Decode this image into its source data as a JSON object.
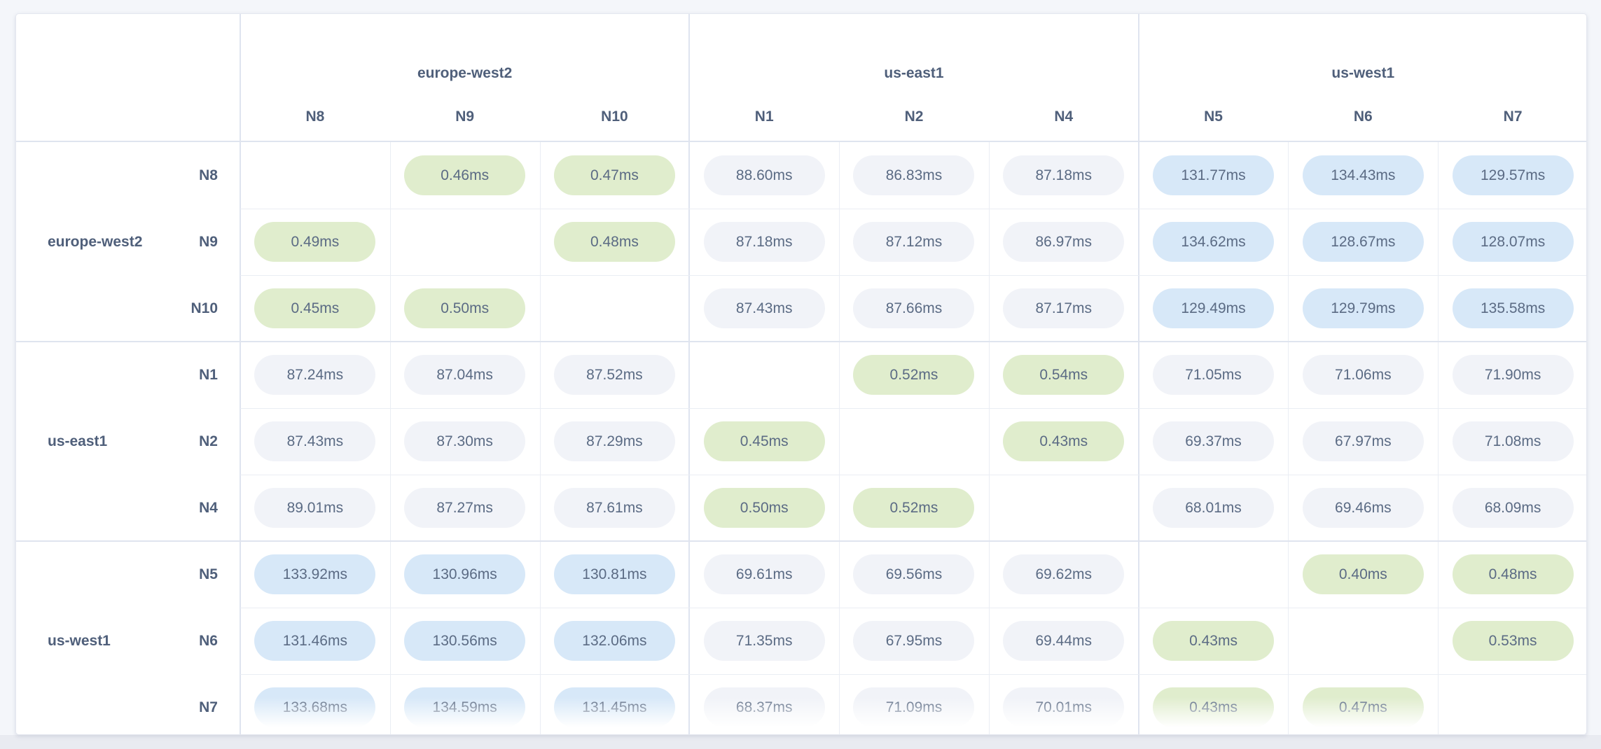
{
  "page": {
    "background_color": "#f4f6fa",
    "footer_band_color": "#e9ebf1",
    "card_background_color": "#ffffff"
  },
  "latency_matrix": {
    "unit_suffix": "ms",
    "column_groups": [
      {
        "region": "europe-west2",
        "nodes": [
          "N8",
          "N9",
          "N10"
        ]
      },
      {
        "region": "us-east1",
        "nodes": [
          "N1",
          "N2",
          "N4"
        ]
      },
      {
        "region": "us-west1",
        "nodes": [
          "N5",
          "N6",
          "N7"
        ]
      }
    ],
    "row_groups": [
      {
        "region": "europe-west2",
        "rows": [
          {
            "node": "N8",
            "values": [
              null,
              "0.46ms",
              "0.47ms",
              "88.60ms",
              "86.83ms",
              "87.18ms",
              "131.77ms",
              "134.43ms",
              "129.57ms"
            ]
          },
          {
            "node": "N9",
            "values": [
              "0.49ms",
              null,
              "0.48ms",
              "87.18ms",
              "87.12ms",
              "86.97ms",
              "134.62ms",
              "128.67ms",
              "128.07ms"
            ]
          },
          {
            "node": "N10",
            "values": [
              "0.45ms",
              "0.50ms",
              null,
              "87.43ms",
              "87.66ms",
              "87.17ms",
              "129.49ms",
              "129.79ms",
              "135.58ms"
            ]
          }
        ]
      },
      {
        "region": "us-east1",
        "rows": [
          {
            "node": "N1",
            "values": [
              "87.24ms",
              "87.04ms",
              "87.52ms",
              null,
              "0.52ms",
              "0.54ms",
              "71.05ms",
              "71.06ms",
              "71.90ms"
            ]
          },
          {
            "node": "N2",
            "values": [
              "87.43ms",
              "87.30ms",
              "87.29ms",
              "0.45ms",
              null,
              "0.43ms",
              "69.37ms",
              "67.97ms",
              "71.08ms"
            ]
          },
          {
            "node": "N4",
            "values": [
              "89.01ms",
              "87.27ms",
              "87.61ms",
              "0.50ms",
              "0.52ms",
              null,
              "68.01ms",
              "69.46ms",
              "68.09ms"
            ]
          }
        ]
      },
      {
        "region": "us-west1",
        "rows": [
          {
            "node": "N5",
            "values": [
              "133.92ms",
              "130.96ms",
              "130.81ms",
              "69.61ms",
              "69.56ms",
              "69.62ms",
              null,
              "0.40ms",
              "0.48ms"
            ]
          },
          {
            "node": "N6",
            "values": [
              "131.46ms",
              "130.56ms",
              "132.06ms",
              "71.35ms",
              "67.95ms",
              "69.44ms",
              "0.43ms",
              null,
              "0.53ms"
            ]
          },
          {
            "node": "N7",
            "values": [
              "133.68ms",
              "134.59ms",
              "131.45ms",
              "68.37ms",
              "71.09ms",
              "70.01ms",
              "0.43ms",
              "0.47ms",
              null
            ]
          }
        ]
      }
    ],
    "value_styles": {
      "low_latency_bg": "#e0edcd",
      "medium_latency_bg": "#f1f3f8",
      "high_latency_bg": "#d7e8f8",
      "value_text_color": "#5b6b84",
      "header_text_color": "#4f5f7a",
      "thresholds": {
        "low_below_ms": 1,
        "high_above_ms": 100
      }
    }
  }
}
